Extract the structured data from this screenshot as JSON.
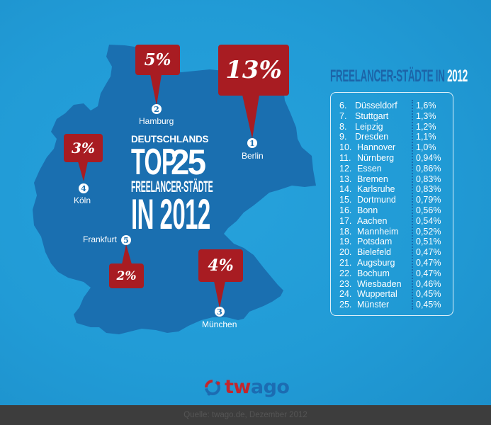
{
  "headline": {
    "line1": "DEUTSCHLANDS",
    "top_word": "TOP",
    "top_number": "25",
    "line3": "FREELANCER-STÄDTE",
    "line4": "IN 2012"
  },
  "map_pins": [
    {
      "rank": "1",
      "city": "Berlin",
      "share": "13%"
    },
    {
      "rank": "2",
      "city": "Hamburg",
      "share": "5%"
    },
    {
      "rank": "3",
      "city": "München",
      "share": "4%"
    },
    {
      "rank": "4",
      "city": "Köln",
      "share": "3%"
    },
    {
      "rank": "5",
      "city": "Frankfurt",
      "share": "2%"
    }
  ],
  "panel": {
    "title_prefix": "FREELANCER-STÄDTE IN",
    "title_year": "2012",
    "rows": [
      {
        "rank": "6.",
        "city": "Düsseldorf",
        "share": "1,6%"
      },
      {
        "rank": "7.",
        "city": "Stuttgart",
        "share": "1,3%"
      },
      {
        "rank": "8.",
        "city": "Leipzig",
        "share": "1,2%"
      },
      {
        "rank": "9.",
        "city": "Dresden",
        "share": "1,1%"
      },
      {
        "rank": "10.",
        "city": "Hannover",
        "share": "1,0%"
      },
      {
        "rank": "11.",
        "city": "Nürnberg",
        "share": "0,94%"
      },
      {
        "rank": "12.",
        "city": "Essen",
        "share": "0,86%"
      },
      {
        "rank": "13.",
        "city": "Bremen",
        "share": "0,83%"
      },
      {
        "rank": "14.",
        "city": "Karlsruhe",
        "share": "0,83%"
      },
      {
        "rank": "15.",
        "city": "Dortmund",
        "share": "0,79%"
      },
      {
        "rank": "16.",
        "city": "Bonn",
        "share": "0,56%"
      },
      {
        "rank": "17.",
        "city": "Aachen",
        "share": "0,54%"
      },
      {
        "rank": "18.",
        "city": "Mannheim",
        "share": "0,52%"
      },
      {
        "rank": "19.",
        "city": "Potsdam",
        "share": "0,51%"
      },
      {
        "rank": "20.",
        "city": "Bielefeld",
        "share": "0,47%"
      },
      {
        "rank": "21.",
        "city": "Augsburg",
        "share": "0,47%"
      },
      {
        "rank": "22.",
        "city": "Bochum",
        "share": "0,47%"
      },
      {
        "rank": "23.",
        "city": "Wiesbaden",
        "share": "0,46%"
      },
      {
        "rank": "24.",
        "city": "Wuppertal",
        "share": "0,45%"
      },
      {
        "rank": "25.",
        "city": "Münster",
        "share": "0,45%"
      }
    ]
  },
  "logo": {
    "icon": "twago-ring-logo-icon",
    "part1": "tw",
    "part2": "ago"
  },
  "footer": {
    "source": "Quelle: twago.de, Dezember 2012"
  },
  "colors": {
    "background": "#219bd6",
    "map": "#1a6fb0",
    "pin": "#a81c22",
    "title_dark": "#1c64a8",
    "footer": "#3d3d3d"
  },
  "chart_data": {
    "type": "table",
    "title": "Deutschlands Top 25 Freelancer-Städte in 2012",
    "unit": "% share of freelancers",
    "categories": [
      "Berlin",
      "Hamburg",
      "München",
      "Köln",
      "Frankfurt",
      "Düsseldorf",
      "Stuttgart",
      "Leipzig",
      "Dresden",
      "Hannover",
      "Nürnberg",
      "Essen",
      "Bremen",
      "Karlsruhe",
      "Dortmund",
      "Bonn",
      "Aachen",
      "Mannheim",
      "Potsdam",
      "Bielefeld",
      "Augsburg",
      "Bochum",
      "Wiesbaden",
      "Wuppertal",
      "Münster"
    ],
    "values": [
      13,
      5,
      4,
      3,
      2,
      1.6,
      1.3,
      1.2,
      1.1,
      1.0,
      0.94,
      0.86,
      0.83,
      0.83,
      0.79,
      0.56,
      0.54,
      0.52,
      0.51,
      0.47,
      0.47,
      0.47,
      0.46,
      0.45,
      0.45
    ],
    "source": "Quelle: twago.de, Dezember 2012"
  }
}
